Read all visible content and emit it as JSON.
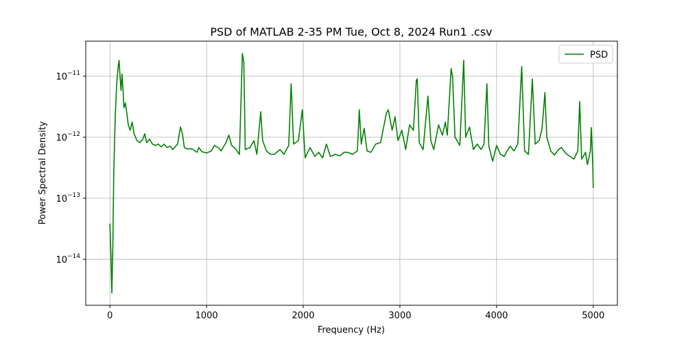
{
  "chart_data": {
    "type": "line",
    "title": "PSD of MATLAB 2-35 PM Tue, Oct 8, 2024 Run1 .csv",
    "xlabel": "Frequency (Hz)",
    "ylabel": "Power Spectral Density",
    "yscale": "log",
    "grid": true,
    "legend": "upper right",
    "xlim": [
      -250,
      5250
    ],
    "xticks": [
      0,
      1000,
      2000,
      3000,
      4000,
      5000
    ],
    "ylim": [
      1.77e-15,
      3.74e-11
    ],
    "yticks": [
      {
        "value": 1e-14,
        "label": "10−14"
      },
      {
        "value": 1e-13,
        "label": "10−13"
      },
      {
        "value": 1e-12,
        "label": "10−12"
      },
      {
        "value": 1e-11,
        "label": "10−11"
      }
    ],
    "x": [
      0,
      10,
      20,
      30,
      40,
      55,
      70,
      85,
      95,
      105,
      115,
      125,
      135,
      145,
      160,
      175,
      190,
      210,
      230,
      250,
      280,
      310,
      340,
      360,
      380,
      410,
      440,
      470,
      500,
      530,
      560,
      590,
      620,
      650,
      700,
      730,
      750,
      770,
      800,
      850,
      900,
      920,
      950,
      1000,
      1050,
      1080,
      1120,
      1150,
      1200,
      1230,
      1260,
      1300,
      1340,
      1370,
      1385,
      1400,
      1450,
      1490,
      1520,
      1560,
      1580,
      1620,
      1660,
      1700,
      1760,
      1800,
      1850,
      1875,
      1900,
      1950,
      1990,
      2020,
      2070,
      2120,
      2160,
      2200,
      2240,
      2280,
      2330,
      2380,
      2420,
      2460,
      2510,
      2560,
      2580,
      2600,
      2630,
      2660,
      2700,
      2750,
      2800,
      2860,
      2880,
      2920,
      2950,
      2980,
      3020,
      3060,
      3100,
      3140,
      3170,
      3180,
      3200,
      3240,
      3290,
      3320,
      3350,
      3400,
      3440,
      3470,
      3490,
      3530,
      3545,
      3570,
      3620,
      3660,
      3680,
      3720,
      3760,
      3800,
      3840,
      3870,
      3900,
      3920,
      3960,
      4000,
      4040,
      4080,
      4100,
      4140,
      4180,
      4220,
      4260,
      4290,
      4330,
      4370,
      4400,
      4440,
      4470,
      4500,
      4520,
      4560,
      4600,
      4640,
      4670,
      4720,
      4760,
      4800,
      4840,
      4860,
      4880,
      4920,
      4940,
      4970,
      4980,
      4995,
      5000
    ],
    "series": [
      {
        "name": "PSD",
        "color": "#008000",
        "values": [
          3.84e-14,
          1.23e-14,
          2.81e-15,
          1.59e-14,
          2.74e-13,
          2.17e-12,
          7.52e-12,
          1.4e-11,
          1.81e-11,
          9.75e-12,
          5.81e-12,
          1.08e-11,
          6.12e-12,
          3.04e-12,
          3.65e-12,
          2.47e-12,
          1.59e-12,
          1.3e-12,
          1.77e-12,
          1.14e-12,
          8.79e-13,
          8.13e-13,
          9.25e-13,
          1.14e-12,
          8.13e-13,
          9.25e-13,
          7.72e-13,
          7.33e-13,
          7.72e-13,
          6.96e-13,
          7.72e-13,
          6.78e-13,
          7.14e-13,
          6.28e-13,
          7.72e-13,
          1.47e-12,
          1.14e-12,
          6.78e-13,
          6.44e-13,
          6.44e-13,
          5.66e-13,
          6.78e-13,
          5.81e-13,
          5.51e-13,
          5.96e-13,
          7.33e-13,
          6.78e-13,
          5.96e-13,
          8.13e-13,
          1.08e-12,
          7.33e-13,
          6.44e-13,
          5.24e-13,
          2.35e-11,
          1.72e-11,
          6.28e-13,
          6.78e-13,
          8.79e-13,
          5.24e-13,
          2.61e-12,
          8.79e-13,
          5.96e-13,
          5.24e-13,
          5.24e-13,
          6.28e-13,
          5.24e-13,
          7.33e-13,
          7.52e-12,
          7.72e-13,
          8.79e-13,
          2.81e-12,
          4.6e-13,
          6.78e-13,
          4.85e-13,
          5.66e-13,
          4.6e-13,
          7.72e-13,
          4.85e-13,
          5.24e-13,
          4.97e-13,
          5.66e-13,
          5.66e-13,
          5.24e-13,
          5.96e-13,
          2.81e-12,
          7.72e-13,
          1.4e-12,
          5.96e-13,
          5.66e-13,
          7.72e-13,
          8.13e-13,
          2.47e-12,
          2.81e-12,
          1.3e-12,
          2.17e-12,
          8.79e-13,
          1.3e-12,
          6.28e-13,
          1.59e-12,
          1.3e-12,
          8.57e-12,
          9.02e-12,
          8.13e-13,
          6.28e-13,
          4.72e-12,
          8.79e-13,
          6.28e-13,
          1.59e-12,
          1.08e-12,
          1.77e-12,
          1.08e-12,
          1.33e-11,
          9.75e-12,
          1e-12,
          7.33e-13,
          1.81e-11,
          1e-12,
          1.47e-12,
          6.28e-13,
          7.72e-13,
          6.28e-13,
          7.72e-13,
          7.52e-12,
          7.14e-13,
          4.04e-13,
          7.33e-13,
          5.24e-13,
          4.85e-13,
          5.66e-13,
          7.14e-13,
          5.96e-13,
          7.72e-13,
          1.44e-11,
          5.96e-13,
          5.24e-13,
          9.02e-12,
          7.72e-13,
          8.79e-13,
          1.36e-12,
          5.37e-12,
          1e-12,
          5.96e-13,
          5.1e-13,
          6.28e-13,
          6.78e-13,
          5.37e-13,
          4.85e-13,
          4.37e-13,
          5.96e-13,
          3.84e-12,
          4.37e-13,
          5.66e-13,
          3.56e-13,
          5.96e-13,
          1.44e-12,
          3.56e-13,
          1.47e-13
        ]
      }
    ]
  }
}
